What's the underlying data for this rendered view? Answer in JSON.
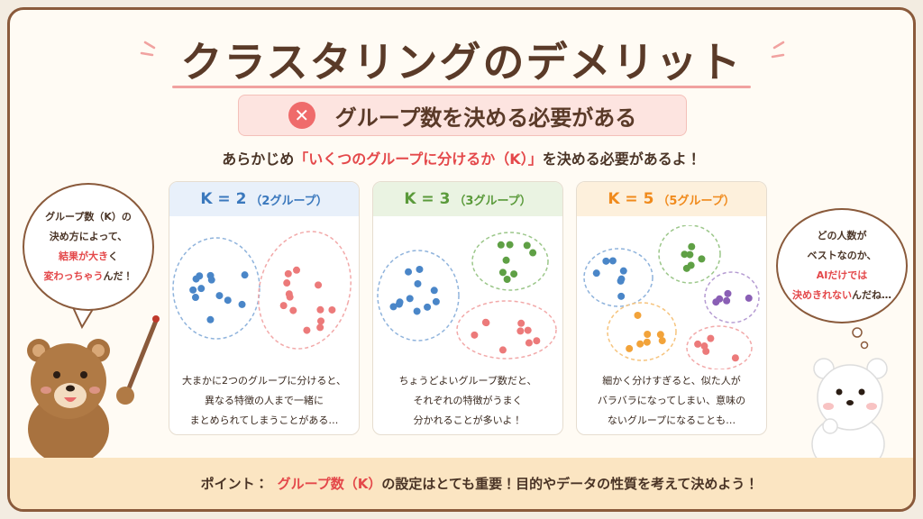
{
  "title": "クラスタリングのデメリット",
  "problem": "グループ数を決める必要がある",
  "lead": {
    "before": "あらかじめ",
    "highlight": "「いくつのグループに分けるか（K）」",
    "after": "を決める必要があるよ！"
  },
  "left_bubble": [
    [
      {
        "text": "グループ数（K）の"
      }
    ],
    [
      {
        "text": "決め方によって、"
      }
    ],
    [
      {
        "text": "結果が大き",
        "emphasis": true
      },
      {
        "text": "く"
      }
    ],
    [
      {
        "text": "変わっちゃう",
        "emphasis": true
      },
      {
        "text": "んだ！"
      }
    ]
  ],
  "right_bubble": [
    [
      {
        "text": "どの人数が"
      }
    ],
    [
      {
        "text": "ベストなのか、"
      }
    ],
    [
      {
        "text": "AIだけでは",
        "emphasis": true
      }
    ],
    [
      {
        "text": "決めきれない",
        "emphasis": true
      },
      {
        "text": "んだね…"
      }
    ]
  ],
  "cards": [
    {
      "k": "K = 2",
      "groups": "（2グループ）",
      "description": [
        "大まかに2つのグループに分けると、",
        "異なる特徴の人まで一緒に",
        "まとめられてしまうことがある…"
      ]
    },
    {
      "k": "K = 3",
      "groups": "（3グループ）",
      "description": [
        "ちょうどよいグループ数だと、",
        "それぞれの特徴がうまく",
        "分かれることが多いよ！"
      ]
    },
    {
      "k": "K = 5",
      "groups": "（5グループ）",
      "description": [
        "細かく分けすぎると、似た人が",
        "バラバラになってしまい、意味の",
        "ないグループになることも…"
      ]
    }
  ],
  "footer": {
    "label": "ポイント：",
    "highlight": "グループ数（K）",
    "text": "の設定はとても重要！目的やデータの性質を考えて決めよう！"
  }
}
